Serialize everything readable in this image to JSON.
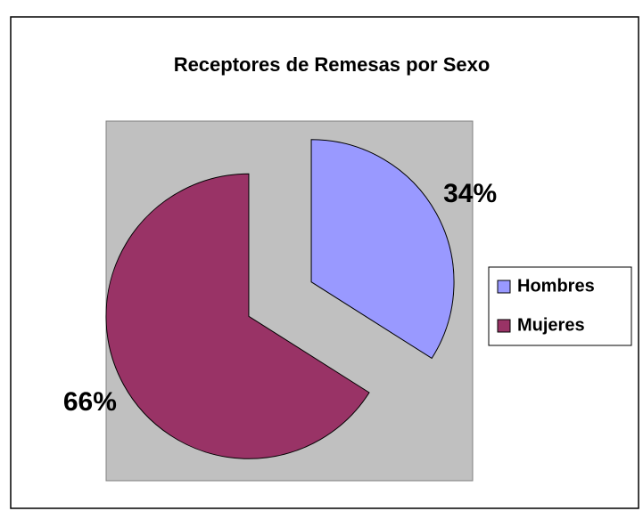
{
  "chart_data": {
    "type": "pie",
    "title": "Receptores de Remesas por Sexo",
    "categories": [
      "Hombres",
      "Mujeres"
    ],
    "values": [
      34,
      66
    ],
    "value_labels": [
      "34%",
      "66%"
    ],
    "colors": [
      "#9999ff",
      "#993366"
    ],
    "legend": "right",
    "exploded": true
  }
}
